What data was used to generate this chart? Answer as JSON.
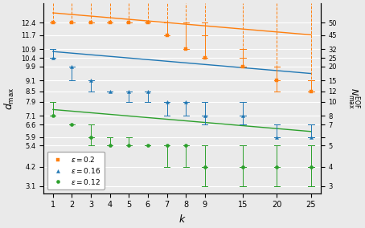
{
  "k_ticks": [
    1,
    2,
    3,
    4,
    5,
    6,
    7,
    8,
    9,
    15,
    20,
    25
  ],
  "series": [
    {
      "label": "$\\varepsilon = 0.2$",
      "color": "#ff7f0e",
      "marker": "s",
      "trend_slope": -0.092,
      "trend_intercept": 13.05,
      "k_vals": [
        1,
        2,
        3,
        4,
        5,
        6,
        7,
        8,
        9,
        15,
        20,
        25
      ],
      "y_main": [
        12.4,
        12.4,
        12.4,
        12.4,
        12.4,
        12.4,
        11.7,
        10.9,
        10.4,
        9.9,
        9.1,
        8.5
      ],
      "y_spread_samples": [
        [
          12.4
        ],
        [
          12.4
        ],
        [
          12.4,
          12.4
        ],
        [
          12.4,
          12.4
        ],
        [
          12.4,
          12.4
        ],
        [
          12.4,
          12.4
        ],
        [
          11.7,
          12.4
        ],
        [
          10.9,
          12.4
        ],
        [
          10.4,
          11.7,
          12.4
        ],
        [
          9.9,
          9.9,
          10.4,
          10.9,
          10.9,
          10.9
        ],
        [
          8.5,
          8.5,
          8.5,
          9.1,
          9.1,
          9.1,
          9.9,
          9.9
        ],
        [
          8.5,
          8.5,
          8.5,
          8.5,
          8.5,
          8.5,
          9.1,
          9.1,
          9.1
        ]
      ],
      "dashed_top": true
    },
    {
      "label": "$\\varepsilon = 0.16$",
      "color": "#1f77b4",
      "marker": "^",
      "trend_slope": -0.092,
      "trend_intercept": 10.85,
      "k_vals": [
        1,
        2,
        3,
        4,
        5,
        6,
        7,
        8,
        9,
        15,
        20,
        25
      ],
      "y_main": [
        10.4,
        9.9,
        9.1,
        8.5,
        8.5,
        8.5,
        7.9,
        7.9,
        7.1,
        7.1,
        5.9,
        5.9
      ],
      "y_spread_samples": [
        [
          10.4,
          10.9
        ],
        [
          9.1,
          9.9
        ],
        [
          8.5,
          9.1
        ],
        [
          8.5,
          8.5
        ],
        [
          7.9,
          8.5
        ],
        [
          7.9,
          8.5
        ],
        [
          7.1,
          7.9
        ],
        [
          7.1,
          7.9
        ],
        [
          6.6,
          7.1,
          7.9
        ],
        [
          6.6,
          6.6,
          7.1,
          7.1,
          7.1,
          7.9
        ],
        [
          5.9,
          5.9,
          5.9,
          6.6,
          6.6,
          6.6,
          6.6
        ],
        [
          5.9,
          5.9,
          5.9,
          5.9,
          5.9,
          6.6,
          6.6
        ]
      ],
      "dashed_top": false
    },
    {
      "label": "$\\varepsilon = 0.12$",
      "color": "#2ca02c",
      "marker": "o",
      "trend_slope": -0.092,
      "trend_intercept": 7.55,
      "k_vals": [
        1,
        2,
        3,
        4,
        5,
        6,
        7,
        8,
        9,
        15,
        20,
        25
      ],
      "y_main": [
        7.1,
        6.6,
        5.9,
        5.4,
        5.4,
        5.4,
        5.4,
        5.4,
        4.2,
        4.2,
        4.2,
        4.2
      ],
      "y_spread_samples": [
        [
          7.1,
          7.9
        ],
        [
          6.6,
          6.6
        ],
        [
          5.4,
          5.9,
          6.6
        ],
        [
          5.4,
          5.9
        ],
        [
          5.4,
          5.9
        ],
        [
          5.4,
          5.4
        ],
        [
          4.2,
          5.4
        ],
        [
          4.2,
          5.4
        ],
        [
          3.1,
          4.2,
          5.4
        ],
        [
          3.1,
          3.1,
          4.2,
          4.2,
          5.4,
          5.4
        ],
        [
          3.1,
          3.1,
          3.1,
          4.2,
          4.2,
          5.4,
          5.4
        ],
        [
          3.1,
          3.1,
          3.1,
          3.1,
          4.2,
          4.2,
          5.4,
          5.4
        ]
      ],
      "dashed_top": false
    }
  ],
  "xlim_data": [
    0.5,
    27.5
  ],
  "ylim": [
    2.7,
    13.5
  ],
  "yticks_left": [
    3.1,
    4.2,
    5.4,
    5.9,
    6.6,
    7.1,
    7.9,
    8.5,
    9.1,
    9.9,
    10.4,
    10.9,
    11.7,
    12.4
  ],
  "yticks_right_labels": [
    "3",
    "4",
    "5",
    "",
    "7",
    "8",
    "10",
    "12",
    "15",
    "20",
    "25",
    "32",
    "45",
    "50"
  ],
  "xlabel": "$k$",
  "ylabel_left": "$d_{\\mathrm{max}}$",
  "ylabel_right": "$N^{\\mathrm{EOF}}_{\\mathrm{max}}$",
  "background_color": "#eaeaea",
  "grid_color": "white",
  "figsize": [
    4.54,
    2.84
  ],
  "dpi": 100
}
